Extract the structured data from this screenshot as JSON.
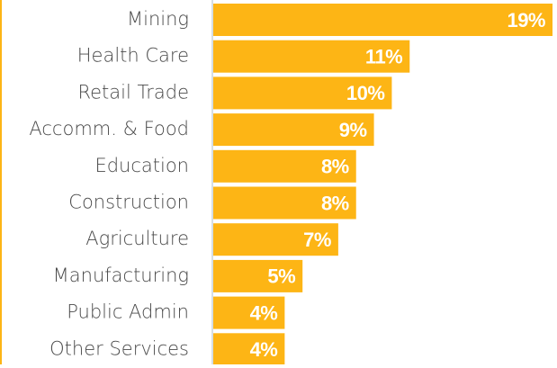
{
  "chart_data": {
    "type": "bar",
    "orientation": "horizontal",
    "categories": [
      "Mining",
      "Health Care",
      "Retail Trade",
      "Accomm. & Food",
      "Education",
      "Construction",
      "Agriculture",
      "Manufacturing",
      "Public Admin",
      "Other Services"
    ],
    "values": [
      19,
      11,
      10,
      9,
      8,
      8,
      7,
      5,
      4,
      4
    ],
    "value_labels": [
      "19%",
      "11%",
      "10%",
      "9%",
      "8%",
      "8%",
      "7%",
      "5%",
      "4%",
      "4%"
    ],
    "color": "#fdb515"
  }
}
